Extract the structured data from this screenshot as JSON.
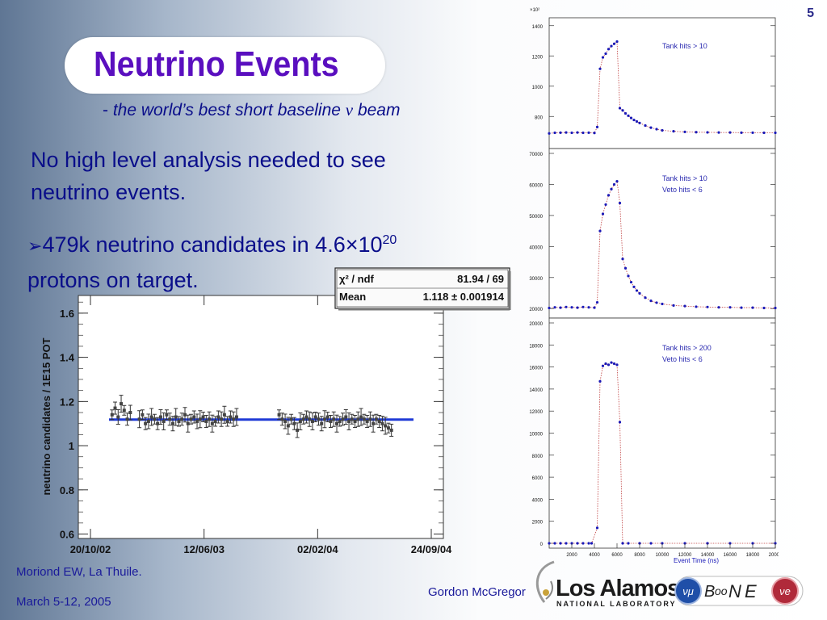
{
  "slide": {
    "number": "5",
    "title": "Neutrino Events",
    "subtitle_prefix": "- ",
    "subtitle_main": "the world’s best short baseline ",
    "subtitle_nu": "ν",
    "subtitle_end": " beam",
    "body_line1": "No high level analysis needed to see",
    "body_line2": "neutrino events.",
    "bullet_symbol": "➢",
    "bullet_text_a": "479k neutrino candidates in 4.6×10",
    "bullet_sup": "20",
    "bullet_text_b": "protons on target."
  },
  "footer": {
    "conference": "Moriond EW, La Thuile.",
    "dates": "March 5-12, 2005",
    "author": "Gordon McGregor"
  },
  "logos": {
    "lanl_text": "Los Alamos",
    "lanl_sub": "NATIONAL LABORATORY",
    "miniboone_b": "B",
    "miniboone_oo": "oo",
    "miniboone_n": "N",
    "miniboone_e": "E",
    "nu_mu": "νμ",
    "nu_e": "νe"
  },
  "chart_data": [
    {
      "type": "scatter",
      "title": "",
      "ylabel": "neutrino candidates / 1E15 POT",
      "xlabel": "",
      "x_tick_labels": [
        "20/10/02",
        "12/06/03",
        "02/02/04",
        "24/09/04"
      ],
      "y_tick_labels": [
        "0.6",
        "0.8",
        "1",
        "1.2",
        "1.4",
        "1.6"
      ],
      "ylim": [
        0.58,
        1.68
      ],
      "fit_value": 1.118,
      "stats_box": {
        "label1": "χ² / ndf",
        "value1": "81.94 / 69",
        "label2": "Mean",
        "value2": "1.118 ± 0.001914"
      },
      "series": [
        {
          "x": [
            0.01,
            0.02,
            0.03,
            0.04,
            0.05,
            0.06,
            0.07,
            0.1,
            0.11,
            0.12,
            0.13,
            0.14,
            0.15,
            0.16,
            0.17,
            0.18,
            0.19,
            0.2,
            0.21,
            0.22,
            0.23,
            0.24,
            0.25,
            0.26,
            0.27,
            0.28,
            0.29,
            0.3,
            0.31,
            0.32,
            0.33,
            0.34,
            0.35,
            0.36,
            0.37,
            0.38,
            0.39,
            0.4,
            0.41,
            0.42,
            0.56,
            0.57,
            0.58,
            0.59,
            0.6,
            0.61,
            0.62,
            0.63,
            0.64,
            0.65,
            0.66,
            0.67,
            0.68,
            0.69,
            0.7,
            0.71,
            0.72,
            0.73,
            0.74,
            0.75,
            0.76,
            0.77,
            0.78,
            0.79,
            0.8,
            0.81,
            0.82,
            0.83,
            0.84,
            0.85,
            0.86,
            0.87,
            0.88,
            0.89,
            0.9,
            0.91,
            0.92,
            0.93
          ],
          "values": [
            1.14,
            1.17,
            1.13,
            1.19,
            1.16,
            1.12,
            1.15,
            1.12,
            1.14,
            1.1,
            1.11,
            1.13,
            1.12,
            1.1,
            1.13,
            1.11,
            1.14,
            1.12,
            1.1,
            1.13,
            1.11,
            1.12,
            1.14,
            1.1,
            1.12,
            1.13,
            1.11,
            1.12,
            1.13,
            1.11,
            1.12,
            1.1,
            1.11,
            1.13,
            1.12,
            1.14,
            1.11,
            1.13,
            1.12,
            1.13,
            1.14,
            1.12,
            1.11,
            1.09,
            1.12,
            1.1,
            1.07,
            1.11,
            1.12,
            1.13,
            1.12,
            1.11,
            1.13,
            1.12,
            1.1,
            1.12,
            1.13,
            1.11,
            1.12,
            1.1,
            1.11,
            1.12,
            1.13,
            1.11,
            1.12,
            1.11,
            1.12,
            1.13,
            1.12,
            1.11,
            1.12,
            1.1,
            1.12,
            1.11,
            1.1,
            1.09,
            1.08,
            1.07
          ]
        }
      ]
    },
    {
      "type": "line",
      "title": "",
      "xlabel": "Event Time (ns)",
      "x_tick_labels": [
        "2000",
        "4000",
        "6000",
        "8000",
        "10000",
        "12000",
        "14000",
        "16000",
        "18000",
        "20000"
      ],
      "xlim": [
        0,
        20000
      ],
      "panels": [
        {
          "annotation_lines": [
            "Tank hits > 10"
          ],
          "y_multiplier_label": "×10²",
          "y_tick_labels": [
            "800",
            "1000",
            "1200",
            "1400"
          ],
          "ylim": [
            620,
            1420
          ],
          "series": [
            {
              "x": [
                0,
                500,
                1000,
                1500,
                2000,
                2500,
                3000,
                3500,
                4000,
                4250,
                4500,
                4750,
                5000,
                5250,
                5500,
                5750,
                6000,
                6250,
                6500,
                6750,
                7000,
                7250,
                7500,
                7750,
                8000,
                8500,
                9000,
                9500,
                10000,
                11000,
                12000,
                13000,
                14000,
                15000,
                16000,
                17000,
                18000,
                19000,
                20000
              ],
              "values": [
                688,
                692,
                693,
                694,
                692,
                694,
                692,
                693,
                691,
                730,
                1115,
                1190,
                1215,
                1245,
                1265,
                1280,
                1295,
                855,
                840,
                820,
                805,
                790,
                777,
                767,
                757,
                740,
                726,
                716,
                708,
                702,
                698,
                696,
                695,
                694,
                694,
                693,
                693,
                692,
                692
              ]
            }
          ]
        },
        {
          "annotation_lines": [
            "Tank hits > 10",
            "Veto hits < 6"
          ],
          "y_tick_labels": [
            "20000",
            "30000",
            "40000",
            "50000",
            "60000",
            "70000"
          ],
          "ylim": [
            18500,
            70000
          ],
          "series": [
            {
              "x": [
                0,
                500,
                1000,
                1500,
                2000,
                2500,
                3000,
                3500,
                4000,
                4250,
                4500,
                4750,
                5000,
                5250,
                5500,
                5750,
                6000,
                6250,
                6500,
                6750,
                7000,
                7250,
                7500,
                7750,
                8000,
                8500,
                9000,
                9500,
                10000,
                11000,
                12000,
                13000,
                14000,
                15000,
                16000,
                17000,
                18000,
                19000,
                20000
              ],
              "values": [
                20200,
                20400,
                20300,
                20500,
                20400,
                20300,
                20500,
                20400,
                20300,
                22000,
                45000,
                50500,
                53500,
                56500,
                58500,
                60000,
                61000,
                54000,
                36000,
                33000,
                30500,
                28500,
                27000,
                25800,
                24900,
                23500,
                22500,
                21900,
                21500,
                21000,
                20800,
                20600,
                20500,
                20400,
                20400,
                20300,
                20300,
                20200,
                20200
              ]
            }
          ]
        },
        {
          "annotation_lines": [
            "Tank hits > 200",
            "Veto hits < 6"
          ],
          "y_tick_labels": [
            "0",
            "2000",
            "4000",
            "6000",
            "8000",
            "10000",
            "12000",
            "14000",
            "16000",
            "18000",
            "20000"
          ],
          "ylim": [
            0,
            20000
          ],
          "series": [
            {
              "x": [
                0,
                500,
                1000,
                1500,
                2000,
                2500,
                3000,
                3500,
                3750,
                4250,
                4500,
                4750,
                5000,
                5250,
                5500,
                5750,
                6000,
                6250,
                6500,
                7000,
                8000,
                9000,
                10000,
                12000,
                14000,
                16000,
                18000,
                20000
              ],
              "values": [
                0,
                0,
                0,
                0,
                0,
                0,
                0,
                0,
                0,
                1400,
                14700,
                16100,
                16300,
                16200,
                16400,
                16300,
                16200,
                11000,
                0,
                0,
                0,
                0,
                0,
                0,
                0,
                0,
                0,
                0
              ]
            }
          ]
        }
      ]
    }
  ],
  "colors": {
    "title": "#5a0fbf",
    "body_text": "#0a0e8a",
    "fit_line": "#1f3ad6",
    "marker_blue": "#1a1ab8",
    "dashed_red": "#c04040"
  }
}
